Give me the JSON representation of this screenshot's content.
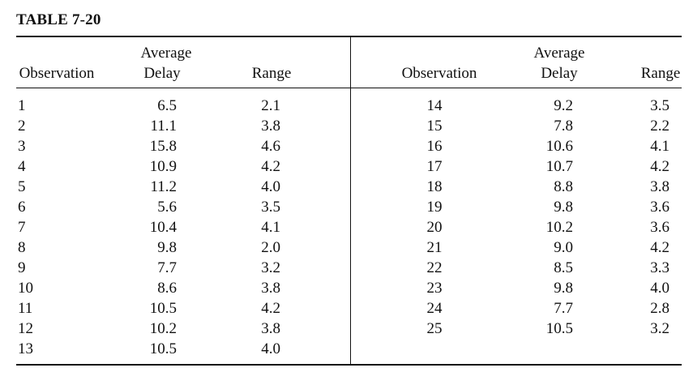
{
  "title": "TABLE 7-20",
  "headers": {
    "observation": "Observation",
    "average_line1": "Average",
    "average_line2": "Delay",
    "range": "Range"
  },
  "left_rows": [
    {
      "observation": "1",
      "average_delay": "6.5",
      "range": "2.1"
    },
    {
      "observation": "2",
      "average_delay": "11.1",
      "range": "3.8"
    },
    {
      "observation": "3",
      "average_delay": "15.8",
      "range": "4.6"
    },
    {
      "observation": "4",
      "average_delay": "10.9",
      "range": "4.2"
    },
    {
      "observation": "5",
      "average_delay": "11.2",
      "range": "4.0"
    },
    {
      "observation": "6",
      "average_delay": "5.6",
      "range": "3.5"
    },
    {
      "observation": "7",
      "average_delay": "10.4",
      "range": "4.1"
    },
    {
      "observation": "8",
      "average_delay": "9.8",
      "range": "2.0"
    },
    {
      "observation": "9",
      "average_delay": "7.7",
      "range": "3.2"
    },
    {
      "observation": "10",
      "average_delay": "8.6",
      "range": "3.8"
    },
    {
      "observation": "11",
      "average_delay": "10.5",
      "range": "4.2"
    },
    {
      "observation": "12",
      "average_delay": "10.2",
      "range": "3.8"
    },
    {
      "observation": "13",
      "average_delay": "10.5",
      "range": "4.0"
    }
  ],
  "right_rows": [
    {
      "observation": "14",
      "average_delay": "9.2",
      "range": "3.5"
    },
    {
      "observation": "15",
      "average_delay": "7.8",
      "range": "2.2"
    },
    {
      "observation": "16",
      "average_delay": "10.6",
      "range": "4.1"
    },
    {
      "observation": "17",
      "average_delay": "10.7",
      "range": "4.2"
    },
    {
      "observation": "18",
      "average_delay": "8.8",
      "range": "3.8"
    },
    {
      "observation": "19",
      "average_delay": "9.8",
      "range": "3.6"
    },
    {
      "observation": "20",
      "average_delay": "10.2",
      "range": "3.6"
    },
    {
      "observation": "21",
      "average_delay": "9.0",
      "range": "4.2"
    },
    {
      "observation": "22",
      "average_delay": "8.5",
      "range": "3.3"
    },
    {
      "observation": "23",
      "average_delay": "9.8",
      "range": "4.0"
    },
    {
      "observation": "24",
      "average_delay": "7.7",
      "range": "2.8"
    },
    {
      "observation": "25",
      "average_delay": "10.5",
      "range": "3.2"
    }
  ]
}
